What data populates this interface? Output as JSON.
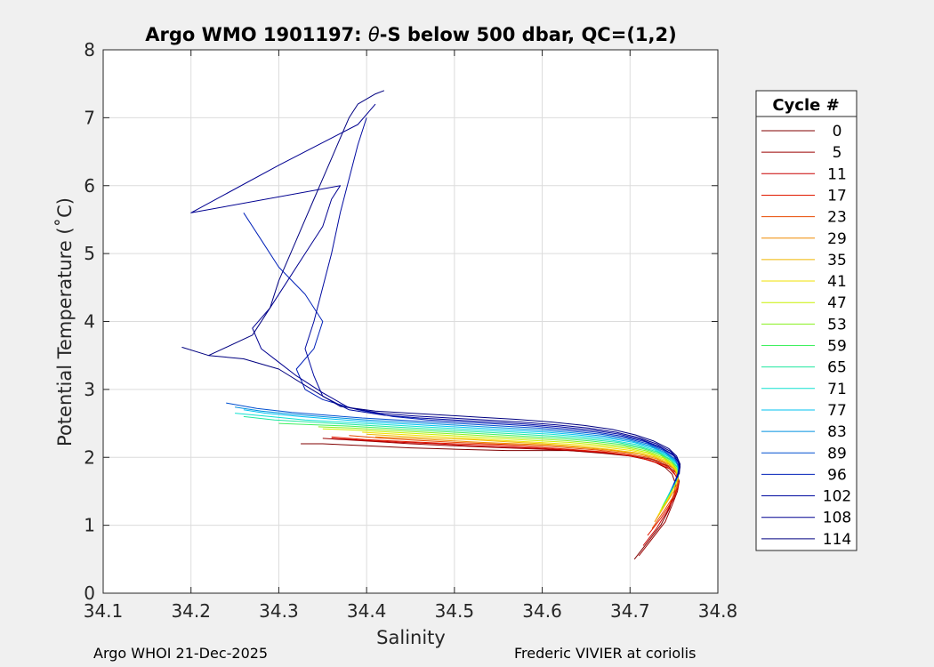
{
  "chart_data": {
    "type": "line",
    "title_prefix": "Argo WMO 1901197: ",
    "title_theta": "θ",
    "title_suffix": "-S below 500 dbar,  QC=(1,2)",
    "xlabel": "Salinity",
    "ylabel": "Potential Temperature (˚C)",
    "xlim": [
      34.1,
      34.8
    ],
    "ylim": [
      0,
      8
    ],
    "xticks": [
      34.1,
      34.2,
      34.3,
      34.4,
      34.5,
      34.6,
      34.7,
      34.8
    ],
    "xtick_labels": [
      "34.1",
      "34.2",
      "34.3",
      "34.4",
      "34.5",
      "34.6",
      "34.7",
      "34.8"
    ],
    "yticks": [
      0,
      1,
      2,
      3,
      4,
      5,
      6,
      7,
      8
    ],
    "ytick_labels": [
      "0",
      "1",
      "2",
      "3",
      "4",
      "5",
      "6",
      "7",
      "8"
    ],
    "grid": true,
    "legend_position": "right",
    "legend_title": "Cycle #",
    "legend": [
      {
        "label": "0",
        "color": "#800000"
      },
      {
        "label": "5",
        "color": "#9a0000"
      },
      {
        "label": "11",
        "color": "#c80000"
      },
      {
        "label": "17",
        "color": "#e01a00"
      },
      {
        "label": "23",
        "color": "#e84a00"
      },
      {
        "label": "29",
        "color": "#f08a00"
      },
      {
        "label": "35",
        "color": "#f0b800"
      },
      {
        "label": "41",
        "color": "#f0e000"
      },
      {
        "label": "47",
        "color": "#c8f000"
      },
      {
        "label": "53",
        "color": "#88f020"
      },
      {
        "label": "59",
        "color": "#40f060"
      },
      {
        "label": "65",
        "color": "#20e8a0"
      },
      {
        "label": "71",
        "color": "#10e0d0"
      },
      {
        "label": "77",
        "color": "#00c0f0"
      },
      {
        "label": "83",
        "color": "#0090e0"
      },
      {
        "label": "89",
        "color": "#0050d0"
      },
      {
        "label": "96",
        "color": "#0020b8"
      },
      {
        "label": "102",
        "color": "#000aa0"
      },
      {
        "label": "108",
        "color": "#000090"
      },
      {
        "label": "114",
        "color": "#000080"
      }
    ],
    "series": [
      {
        "name": "0",
        "color": "#800000",
        "x": [
          34.705,
          34.72,
          34.735,
          34.745,
          34.75,
          34.752,
          34.748,
          34.74,
          34.725,
          34.7,
          34.67,
          34.63,
          34.6,
          34.56,
          34.5,
          34.45,
          34.4,
          34.35,
          34.325
        ],
        "y": [
          0.5,
          0.75,
          1.0,
          1.25,
          1.45,
          1.6,
          1.75,
          1.85,
          1.95,
          2.02,
          2.06,
          2.1,
          2.1,
          2.1,
          2.12,
          2.14,
          2.17,
          2.2,
          2.2
        ]
      },
      {
        "name": "5",
        "color": "#9a0000",
        "x": [
          34.71,
          34.725,
          34.74,
          34.748,
          34.754,
          34.756,
          34.752,
          34.742,
          34.725,
          34.7,
          34.67,
          34.63,
          34.6,
          34.56,
          34.5,
          34.45,
          34.4,
          34.35
        ],
        "y": [
          0.55,
          0.8,
          1.05,
          1.3,
          1.5,
          1.65,
          1.78,
          1.88,
          1.97,
          2.03,
          2.07,
          2.1,
          2.12,
          2.14,
          2.17,
          2.2,
          2.24,
          2.28
        ]
      },
      {
        "name": "11",
        "color": "#c80000",
        "x": [
          34.715,
          34.73,
          34.742,
          34.75,
          34.755,
          34.753,
          34.745,
          34.73,
          34.71,
          34.68,
          34.64,
          34.6,
          34.56,
          34.52,
          34.48,
          34.44,
          34.4,
          34.36
        ],
        "y": [
          0.7,
          0.95,
          1.2,
          1.4,
          1.58,
          1.72,
          1.83,
          1.92,
          2.0,
          2.06,
          2.1,
          2.13,
          2.15,
          2.17,
          2.2,
          2.22,
          2.25,
          2.28
        ]
      },
      {
        "name": "17",
        "color": "#e01a00",
        "x": [
          34.72,
          34.735,
          34.745,
          34.752,
          34.755,
          34.75,
          34.74,
          34.722,
          34.7,
          34.67,
          34.63,
          34.59,
          34.55,
          34.5,
          34.45,
          34.4,
          34.36
        ],
        "y": [
          0.85,
          1.1,
          1.3,
          1.5,
          1.65,
          1.78,
          1.88,
          1.96,
          2.03,
          2.08,
          2.12,
          2.15,
          2.18,
          2.2,
          2.23,
          2.26,
          2.3
        ]
      },
      {
        "name": "23",
        "color": "#e84a00",
        "x": [
          34.725,
          34.738,
          34.748,
          34.754,
          34.755,
          34.749,
          34.737,
          34.72,
          34.695,
          34.66,
          34.62,
          34.58,
          34.54,
          34.5,
          34.46,
          34.42,
          34.38
        ],
        "y": [
          0.95,
          1.2,
          1.4,
          1.58,
          1.72,
          1.84,
          1.93,
          2.0,
          2.06,
          2.11,
          2.15,
          2.18,
          2.2,
          2.22,
          2.25,
          2.28,
          2.32
        ]
      },
      {
        "name": "29",
        "color": "#f08a00",
        "x": [
          34.728,
          34.74,
          34.75,
          34.755,
          34.752,
          34.744,
          34.73,
          34.71,
          34.68,
          34.65,
          34.61,
          34.57,
          34.53,
          34.49,
          34.45,
          34.41
        ],
        "y": [
          1.05,
          1.3,
          1.5,
          1.66,
          1.8,
          1.9,
          1.98,
          2.05,
          2.1,
          2.14,
          2.18,
          2.2,
          2.22,
          2.25,
          2.28,
          2.3
        ]
      },
      {
        "name": "35",
        "color": "#f0b800",
        "x": [
          34.73,
          34.742,
          34.75,
          34.755,
          34.751,
          34.742,
          34.727,
          34.705,
          34.675,
          34.64,
          34.6,
          34.56,
          34.52,
          34.48,
          34.44,
          34.4
        ],
        "y": [
          1.1,
          1.35,
          1.55,
          1.7,
          1.83,
          1.93,
          2.01,
          2.07,
          2.12,
          2.16,
          2.2,
          2.23,
          2.26,
          2.28,
          2.31,
          2.34
        ]
      },
      {
        "name": "41",
        "color": "#f0e000",
        "x": [
          34.732,
          34.744,
          34.751,
          34.755,
          34.75,
          34.74,
          34.724,
          34.702,
          34.67,
          34.635,
          34.595,
          34.555,
          34.515,
          34.475,
          34.435,
          34.395
        ],
        "y": [
          1.15,
          1.4,
          1.58,
          1.74,
          1.86,
          1.96,
          2.04,
          2.1,
          2.15,
          2.19,
          2.22,
          2.25,
          2.28,
          2.31,
          2.34,
          2.37
        ]
      },
      {
        "name": "47",
        "color": "#c8f000",
        "x": [
          34.734,
          34.745,
          34.752,
          34.755,
          34.749,
          34.738,
          34.72,
          34.698,
          34.665,
          34.63,
          34.59,
          34.55,
          34.51,
          34.47,
          34.43,
          34.39,
          34.35
        ],
        "y": [
          1.2,
          1.45,
          1.62,
          1.77,
          1.89,
          1.99,
          2.07,
          2.13,
          2.18,
          2.22,
          2.25,
          2.28,
          2.31,
          2.34,
          2.37,
          2.4,
          2.42
        ]
      },
      {
        "name": "53",
        "color": "#88f020",
        "x": [
          34.736,
          34.746,
          34.753,
          34.755,
          34.748,
          34.736,
          34.717,
          34.694,
          34.66,
          34.625,
          34.585,
          34.545,
          34.505,
          34.465,
          34.425,
          34.385,
          34.345
        ],
        "y": [
          1.25,
          1.5,
          1.66,
          1.8,
          1.92,
          2.02,
          2.1,
          2.16,
          2.21,
          2.25,
          2.28,
          2.31,
          2.34,
          2.37,
          2.4,
          2.43,
          2.45
        ]
      },
      {
        "name": "59",
        "color": "#40f060",
        "x": [
          34.738,
          34.748,
          34.754,
          34.755,
          34.747,
          34.734,
          34.714,
          34.69,
          34.655,
          34.62,
          34.58,
          34.54,
          34.5,
          34.46,
          34.42,
          34.38,
          34.34,
          34.3
        ],
        "y": [
          1.3,
          1.55,
          1.7,
          1.83,
          1.95,
          2.05,
          2.13,
          2.19,
          2.24,
          2.28,
          2.31,
          2.34,
          2.37,
          2.4,
          2.43,
          2.46,
          2.48,
          2.5
        ]
      },
      {
        "name": "65",
        "color": "#20e8a0",
        "x": [
          34.74,
          34.75,
          34.755,
          34.754,
          34.745,
          34.731,
          34.71,
          34.685,
          34.65,
          34.615,
          34.575,
          34.535,
          34.495,
          34.455,
          34.415,
          34.375,
          34.335,
          34.295,
          34.26
        ],
        "y": [
          1.35,
          1.58,
          1.73,
          1.86,
          1.98,
          2.08,
          2.16,
          2.22,
          2.27,
          2.31,
          2.34,
          2.37,
          2.4,
          2.43,
          2.46,
          2.49,
          2.52,
          2.55,
          2.6
        ]
      },
      {
        "name": "71",
        "color": "#10e0d0",
        "x": [
          34.742,
          34.751,
          34.756,
          34.754,
          34.744,
          34.728,
          34.707,
          34.68,
          34.645,
          34.61,
          34.57,
          34.53,
          34.49,
          34.45,
          34.41,
          34.37,
          34.33,
          34.29,
          34.25
        ],
        "y": [
          1.4,
          1.62,
          1.76,
          1.89,
          2.01,
          2.11,
          2.19,
          2.25,
          2.3,
          2.34,
          2.37,
          2.4,
          2.43,
          2.46,
          2.49,
          2.52,
          2.55,
          2.6,
          2.65
        ]
      },
      {
        "name": "77",
        "color": "#00c0f0",
        "x": [
          34.744,
          34.752,
          34.756,
          34.753,
          34.742,
          34.726,
          34.704,
          34.676,
          34.64,
          34.605,
          34.565,
          34.525,
          34.485,
          34.445,
          34.405,
          34.365,
          34.325,
          34.285,
          34.26
        ],
        "y": [
          1.45,
          1.66,
          1.8,
          1.92,
          2.04,
          2.14,
          2.22,
          2.28,
          2.33,
          2.37,
          2.4,
          2.43,
          2.46,
          2.49,
          2.52,
          2.56,
          2.6,
          2.65,
          2.7
        ]
      },
      {
        "name": "83",
        "color": "#0090e0",
        "x": [
          34.746,
          34.753,
          34.756,
          34.752,
          34.74,
          34.723,
          34.7,
          34.672,
          34.635,
          34.6,
          34.56,
          34.52,
          34.48,
          34.44,
          34.4,
          34.36,
          34.32,
          34.28,
          34.25
        ],
        "y": [
          1.5,
          1.7,
          1.83,
          1.95,
          2.07,
          2.17,
          2.25,
          2.31,
          2.36,
          2.4,
          2.43,
          2.46,
          2.49,
          2.52,
          2.55,
          2.59,
          2.63,
          2.68,
          2.74
        ]
      },
      {
        "name": "89",
        "color": "#0050d0",
        "x": [
          34.748,
          34.754,
          34.756,
          34.751,
          34.738,
          34.72,
          34.696,
          34.667,
          34.63,
          34.595,
          34.555,
          34.515,
          34.475,
          34.435,
          34.395,
          34.355,
          34.315,
          34.275,
          34.24
        ],
        "y": [
          1.55,
          1.74,
          1.86,
          1.98,
          2.1,
          2.2,
          2.28,
          2.34,
          2.39,
          2.43,
          2.46,
          2.49,
          2.52,
          2.55,
          2.58,
          2.62,
          2.66,
          2.72,
          2.8
        ]
      },
      {
        "name": "96",
        "color": "#0020b8",
        "x": [
          34.75,
          34.755,
          34.756,
          34.75,
          34.736,
          34.717,
          34.692,
          34.662,
          34.625,
          34.59,
          34.55,
          34.51,
          34.47,
          34.43,
          34.39,
          34.35,
          34.33,
          34.32,
          34.34,
          34.35,
          34.33,
          34.3,
          34.28,
          34.26
        ],
        "y": [
          1.6,
          1.78,
          1.9,
          2.02,
          2.13,
          2.23,
          2.31,
          2.37,
          2.42,
          2.46,
          2.49,
          2.52,
          2.55,
          2.6,
          2.7,
          2.85,
          3.0,
          3.3,
          3.6,
          4.0,
          4.4,
          4.8,
          5.2,
          5.6
        ]
      },
      {
        "name": "102",
        "color": "#000aa0",
        "x": [
          34.752,
          34.756,
          34.755,
          34.748,
          34.733,
          34.713,
          34.688,
          34.658,
          34.62,
          34.58,
          34.54,
          34.5,
          34.46,
          34.42,
          34.38,
          34.35,
          34.34,
          34.33,
          34.34,
          34.35,
          34.36,
          34.37,
          34.38,
          34.39,
          34.4
        ],
        "y": [
          1.65,
          1.82,
          1.94,
          2.05,
          2.16,
          2.26,
          2.34,
          2.4,
          2.45,
          2.49,
          2.52,
          2.55,
          2.58,
          2.62,
          2.7,
          2.9,
          3.2,
          3.6,
          4.0,
          4.5,
          5.0,
          5.6,
          6.1,
          6.6,
          7.0
        ]
      },
      {
        "name": "108",
        "color": "#000090",
        "x": [
          34.754,
          34.757,
          34.754,
          34.746,
          34.73,
          34.71,
          34.684,
          34.653,
          34.615,
          34.575,
          34.535,
          34.495,
          34.455,
          34.415,
          34.38,
          34.35,
          34.32,
          34.3,
          34.28,
          34.27,
          34.29,
          34.31,
          34.33,
          34.35,
          34.36,
          34.37,
          34.2,
          34.3,
          34.39,
          34.41
        ],
        "y": [
          1.7,
          1.86,
          1.98,
          2.09,
          2.2,
          2.29,
          2.37,
          2.43,
          2.48,
          2.52,
          2.55,
          2.58,
          2.61,
          2.65,
          2.73,
          2.95,
          3.2,
          3.4,
          3.6,
          3.9,
          4.2,
          4.6,
          5.0,
          5.4,
          5.8,
          6.0,
          5.6,
          6.3,
          6.9,
          7.2
        ]
      },
      {
        "name": "114",
        "color": "#000080",
        "x": [
          34.756,
          34.757,
          34.753,
          34.744,
          34.727,
          34.706,
          34.68,
          34.648,
          34.61,
          34.57,
          34.53,
          34.49,
          34.45,
          34.41,
          34.37,
          34.34,
          34.3,
          34.26,
          34.22,
          34.19,
          34.22,
          34.27,
          34.29,
          34.3,
          34.31,
          34.32,
          34.33,
          34.34,
          34.35,
          34.36,
          34.37,
          34.38,
          34.39,
          34.41,
          34.42
        ],
        "y": [
          1.75,
          1.9,
          2.02,
          2.13,
          2.24,
          2.33,
          2.41,
          2.47,
          2.52,
          2.56,
          2.59,
          2.62,
          2.65,
          2.68,
          2.75,
          2.98,
          3.3,
          3.45,
          3.5,
          3.62,
          3.5,
          3.8,
          4.2,
          4.6,
          4.9,
          5.2,
          5.5,
          5.8,
          6.1,
          6.4,
          6.7,
          7.0,
          7.2,
          7.35,
          7.4
        ]
      }
    ]
  },
  "footer": {
    "left": "Argo WHOI 21-Dec-2025",
    "right": "Frederic VIVIER at coriolis"
  }
}
